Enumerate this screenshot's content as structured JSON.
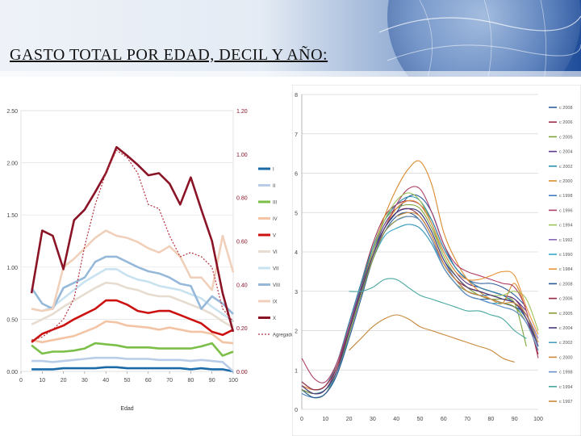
{
  "slide": {
    "title": "GASTO TOTAL POR EDAD, DECIL Y AÑO:"
  },
  "chart_data": [
    {
      "type": "line",
      "x": [
        5,
        10,
        15,
        20,
        25,
        30,
        35,
        40,
        45,
        50,
        55,
        60,
        65,
        70,
        75,
        80,
        85,
        90,
        95,
        100
      ],
      "xticks": [
        "0",
        "10",
        "20",
        "30",
        "40",
        "50",
        "60",
        "70",
        "80",
        "90",
        "100"
      ],
      "xlabel": "Edad",
      "ylim": [
        0,
        2.5
      ],
      "yticks": [
        "0.00",
        "0.50",
        "1.00",
        "1.50",
        "2.00",
        "2.50"
      ],
      "y2ticks": [
        "0.00",
        "0.20",
        "0.40",
        "0.60",
        "0.80",
        "1.00",
        "1.20"
      ],
      "legend_position": "right",
      "grid": true,
      "series": [
        {
          "name": "I",
          "color": "#1a6aa8",
          "values": [
            0.02,
            0.02,
            0.02,
            0.03,
            0.03,
            0.03,
            0.03,
            0.04,
            0.04,
            0.03,
            0.03,
            0.03,
            0.03,
            0.03,
            0.03,
            0.02,
            0.03,
            0.02,
            0.02,
            0.0
          ]
        },
        {
          "name": "II",
          "color": "#b9cde8",
          "values": [
            0.1,
            0.1,
            0.09,
            0.1,
            0.11,
            0.12,
            0.13,
            0.13,
            0.13,
            0.12,
            0.12,
            0.12,
            0.11,
            0.11,
            0.11,
            0.1,
            0.11,
            0.1,
            0.09,
            0.0
          ]
        },
        {
          "name": "III",
          "color": "#7bbf48",
          "values": [
            0.25,
            0.17,
            0.19,
            0.19,
            0.2,
            0.22,
            0.27,
            0.26,
            0.25,
            0.23,
            0.23,
            0.23,
            0.22,
            0.22,
            0.22,
            0.22,
            0.24,
            0.27,
            0.15,
            0.19
          ]
        },
        {
          "name": "IV",
          "color": "#f3c4a4",
          "values": [
            0.3,
            0.28,
            0.3,
            0.32,
            0.34,
            0.38,
            0.42,
            0.48,
            0.47,
            0.44,
            0.43,
            0.42,
            0.4,
            0.42,
            0.4,
            0.38,
            0.38,
            0.36,
            0.28,
            0.27
          ]
        },
        {
          "name": "V",
          "color": "#cc1111",
          "values": [
            0.28,
            0.36,
            0.4,
            0.44,
            0.5,
            0.55,
            0.6,
            0.68,
            0.68,
            0.64,
            0.58,
            0.56,
            0.58,
            0.58,
            0.54,
            0.5,
            0.46,
            0.38,
            0.35,
            0.4
          ]
        },
        {
          "name": "VI",
          "color": "#e6dcd0",
          "values": [
            0.45,
            0.5,
            0.55,
            0.62,
            0.68,
            0.74,
            0.8,
            0.85,
            0.84,
            0.8,
            0.78,
            0.74,
            0.72,
            0.72,
            0.68,
            0.64,
            0.6,
            0.55,
            0.48,
            0.42
          ]
        },
        {
          "name": "VII",
          "color": "#c8e2f0",
          "values": [
            0.6,
            0.58,
            0.62,
            0.7,
            0.78,
            0.86,
            0.92,
            0.98,
            0.98,
            0.92,
            0.88,
            0.86,
            0.82,
            0.8,
            0.78,
            0.74,
            0.7,
            0.62,
            0.55,
            0.48
          ]
        },
        {
          "name": "VIII",
          "color": "#96b9da",
          "values": [
            0.8,
            0.65,
            0.6,
            0.8,
            0.85,
            0.9,
            1.05,
            1.1,
            1.1,
            1.05,
            1.0,
            0.96,
            0.94,
            0.9,
            0.84,
            0.82,
            0.6,
            0.72,
            0.65,
            0.55
          ]
        },
        {
          "name": "IX",
          "color": "#f0d0ba",
          "values": [
            0.6,
            0.58,
            0.6,
            1.0,
            1.08,
            1.18,
            1.28,
            1.35,
            1.3,
            1.28,
            1.24,
            1.18,
            1.14,
            1.2,
            1.1,
            0.9,
            0.9,
            0.78,
            1.3,
            0.95
          ]
        },
        {
          "name": "X",
          "color": "#8a1326",
          "values": [
            0.75,
            1.35,
            1.3,
            0.98,
            1.45,
            1.55,
            1.72,
            1.9,
            2.15,
            2.07,
            1.98,
            1.88,
            1.9,
            1.8,
            1.6,
            1.86,
            1.55,
            1.25,
            0.75,
            0.38
          ]
        },
        {
          "name": "Agregado",
          "color": "#b5313d",
          "dashed": true,
          "values": [
            0.3,
            0.33,
            0.4,
            0.5,
            0.7,
            1.2,
            1.6,
            1.9,
            2.12,
            2.05,
            1.9,
            1.6,
            1.56,
            1.3,
            1.1,
            1.14,
            1.1,
            1.0,
            0.6,
            0.48
          ]
        }
      ]
    },
    {
      "type": "line",
      "x": [
        0,
        5,
        10,
        15,
        20,
        25,
        30,
        35,
        40,
        45,
        50,
        55,
        60,
        65,
        70,
        75,
        80,
        85,
        90,
        95,
        100
      ],
      "xticks": [
        "0",
        "10",
        "20",
        "30",
        "40",
        "50",
        "60",
        "70",
        "80",
        "90",
        "100"
      ],
      "ylim": [
        0,
        8
      ],
      "yticks": [
        "0",
        "1",
        "2",
        "3",
        "4",
        "5",
        "6",
        "7",
        "8"
      ],
      "legend_position": "right",
      "grid": true,
      "series": [
        {
          "name": "c 2008",
          "color": "#2e5e9e",
          "values": [
            0.5,
            0.4,
            0.5,
            1.0,
            2.0,
            3.0,
            4.0,
            4.6,
            5.0,
            5.4,
            5.4,
            5.0,
            4.2,
            3.6,
            3.3,
            3.2,
            3.2,
            3.1,
            2.9,
            2.6,
            null
          ]
        },
        {
          "name": "c 2006",
          "color": "#9e2f4d",
          "values": [
            0.6,
            0.5,
            0.6,
            1.2,
            2.2,
            3.2,
            4.2,
            4.9,
            5.2,
            5.3,
            5.2,
            4.8,
            4.1,
            3.6,
            3.3,
            3.1,
            3.0,
            2.9,
            2.8,
            2.4,
            null
          ]
        },
        {
          "name": "c 2005",
          "color": "#7ea33a",
          "values": [
            0.5,
            0.3,
            0.4,
            1.0,
            2.0,
            3.1,
            4.1,
            4.8,
            5.1,
            5.2,
            5.1,
            4.6,
            3.9,
            3.4,
            3.1,
            2.9,
            2.8,
            2.8,
            2.7,
            1.6,
            null
          ]
        },
        {
          "name": "c 2004",
          "color": "#5b3b8a",
          "values": [
            0.6,
            0.4,
            0.5,
            1.1,
            2.1,
            3.1,
            4.0,
            4.7,
            5.1,
            5.3,
            5.2,
            4.7,
            4.0,
            3.5,
            3.2,
            3.1,
            3.0,
            2.9,
            2.8,
            2.5,
            null
          ]
        },
        {
          "name": "c 2002",
          "color": "#2e8fb0",
          "values": [
            0.7,
            0.5,
            0.6,
            1.2,
            2.2,
            3.2,
            4.1,
            4.8,
            5.2,
            5.4,
            5.3,
            4.8,
            4.1,
            3.6,
            3.3,
            3.1,
            3.0,
            2.9,
            2.7,
            2.4,
            null
          ]
        },
        {
          "name": "c 2000",
          "color": "#d98a2e",
          "values": [
            0.5,
            0.4,
            0.5,
            1.0,
            2.0,
            3.0,
            4.0,
            4.9,
            5.6,
            6.1,
            6.3,
            5.7,
            4.5,
            3.8,
            3.3,
            3.0,
            2.8,
            2.7,
            3.2,
            2.5,
            null
          ]
        },
        {
          "name": "c 1998",
          "color": "#3f7fc0",
          "values": [
            0.4,
            0.3,
            0.4,
            0.9,
            1.9,
            2.9,
            3.9,
            4.6,
            5.0,
            5.1,
            5.0,
            4.5,
            3.8,
            3.3,
            3.0,
            2.9,
            2.9,
            2.8,
            2.7,
            2.4,
            null
          ]
        },
        {
          "name": "c 1996",
          "color": "#b0406a",
          "values": [
            1.3,
            0.8,
            0.7,
            1.2,
            2.1,
            3.0,
            3.9,
            4.6,
            5.2,
            5.6,
            5.6,
            5.0,
            4.2,
            3.7,
            3.5,
            3.4,
            3.3,
            3.2,
            3.1,
            2.5,
            1.3
          ]
        },
        {
          "name": "c 1994",
          "color": "#9cc25a",
          "values": [
            0.5,
            0.4,
            0.5,
            1.0,
            2.0,
            3.0,
            4.0,
            4.8,
            5.3,
            5.5,
            5.3,
            4.7,
            3.9,
            3.4,
            3.1,
            3.0,
            2.9,
            2.9,
            3.0,
            2.8,
            2.0
          ]
        },
        {
          "name": "c 1992",
          "color": "#8a6ab8",
          "values": [
            0.5,
            0.4,
            0.5,
            1.0,
            2.0,
            3.0,
            3.9,
            4.5,
            4.8,
            4.9,
            4.8,
            4.3,
            3.7,
            3.3,
            3.0,
            2.9,
            2.8,
            2.7,
            2.6,
            2.4,
            1.8
          ]
        },
        {
          "name": "c 1990",
          "color": "#3aa8c8",
          "values": [
            0.5,
            0.4,
            0.5,
            0.9,
            1.9,
            2.9,
            3.8,
            4.4,
            4.6,
            4.7,
            4.6,
            4.2,
            3.6,
            3.2,
            2.9,
            2.8,
            2.7,
            2.7,
            2.6,
            2.3,
            1.6
          ]
        },
        {
          "name": "c 1984",
          "color": "#e8953a",
          "values": [
            0.6,
            0.5,
            0.6,
            1.1,
            2.0,
            3.0,
            3.9,
            4.6,
            5.1,
            5.3,
            5.2,
            4.7,
            4.0,
            3.5,
            3.3,
            3.3,
            3.4,
            3.5,
            3.4,
            2.6,
            1.9
          ]
        },
        {
          "name": "c 2008",
          "color": "#2a5a96",
          "values": [
            0.5,
            0.3,
            0.4,
            0.9,
            1.8,
            2.8,
            3.8,
            4.5,
            4.9,
            5.0,
            4.8,
            4.3,
            3.6,
            3.2,
            2.9,
            2.8,
            2.8,
            2.7,
            2.6,
            2.4,
            1.6
          ]
        },
        {
          "name": "c 2006",
          "color": "#962a44",
          "values": [
            0.7,
            0.5,
            0.6,
            1.1,
            2.0,
            3.0,
            3.9,
            4.6,
            5.0,
            5.1,
            4.9,
            4.4,
            3.7,
            3.3,
            3.1,
            3.0,
            2.9,
            2.8,
            2.7,
            2.3,
            1.4
          ]
        },
        {
          "name": "c 2005",
          "color": "#8a9a3a",
          "values": [
            0.5,
            0.4,
            0.5,
            1.0,
            1.9,
            2.9,
            3.8,
            4.5,
            4.8,
            4.9,
            4.8,
            4.3,
            3.6,
            3.2,
            3.0,
            2.9,
            2.8,
            2.7,
            2.6,
            2.2,
            1.5
          ]
        },
        {
          "name": "c 2004",
          "color": "#4a3a7a",
          "values": [
            0.6,
            0.4,
            0.5,
            1.0,
            2.0,
            3.0,
            3.9,
            4.6,
            5.0,
            5.1,
            5.0,
            4.5,
            3.8,
            3.4,
            3.1,
            3.0,
            2.9,
            2.8,
            2.7,
            2.3,
            1.6
          ]
        },
        {
          "name": "c 2002",
          "color": "#4aa0c0",
          "values": [
            null,
            null,
            null,
            null,
            null,
            null,
            null,
            null,
            4.6,
            4.7,
            4.6,
            4.2,
            3.6,
            3.2,
            2.9,
            2.8,
            2.7,
            2.6,
            2.5,
            2.2,
            1.5
          ]
        },
        {
          "name": "c 2000",
          "color": "#c98a3a",
          "values": [
            null,
            null,
            null,
            null,
            null,
            null,
            null,
            null,
            4.9,
            5.0,
            4.9,
            4.4,
            3.7,
            3.3,
            3.0,
            2.9,
            2.8,
            2.7,
            2.7,
            2.4,
            1.7
          ]
        },
        {
          "name": "c 1998",
          "color": "#6a90c8",
          "values": [
            null,
            null,
            null,
            null,
            null,
            null,
            null,
            null,
            4.8,
            4.9,
            4.8,
            4.3,
            3.6,
            3.2,
            2.9,
            2.8,
            2.7,
            2.6,
            2.5,
            2.2,
            1.5
          ]
        },
        {
          "name": "c 1994",
          "color": "#48a8a0",
          "values": [
            null,
            null,
            null,
            null,
            3.0,
            3.0,
            3.1,
            3.3,
            3.3,
            3.1,
            2.9,
            2.8,
            2.7,
            2.6,
            2.5,
            2.5,
            2.4,
            2.3,
            2.0,
            1.8,
            null
          ]
        },
        {
          "name": "c 1997",
          "color": "#c8883a",
          "values": [
            null,
            null,
            null,
            null,
            1.5,
            1.8,
            2.1,
            2.3,
            2.4,
            2.3,
            2.1,
            2.0,
            1.9,
            1.8,
            1.7,
            1.6,
            1.5,
            1.3,
            1.2,
            null,
            null
          ]
        }
      ]
    }
  ]
}
